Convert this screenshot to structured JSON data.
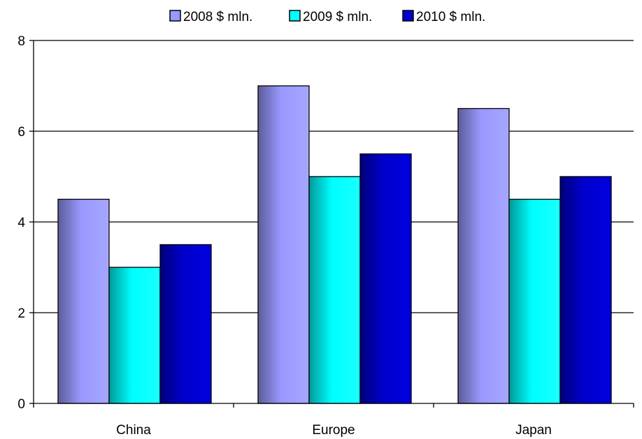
{
  "chart_data": {
    "type": "bar",
    "title": "",
    "xlabel": "",
    "ylabel": "",
    "categories": [
      "China",
      "Europe",
      "Japan"
    ],
    "series": [
      {
        "name": "2008 $ mln.",
        "values": [
          4.5,
          7.0,
          6.5
        ],
        "color": "#9999ff"
      },
      {
        "name": "2009 $ mln.",
        "values": [
          3.0,
          5.0,
          4.5
        ],
        "color": "#00ffff"
      },
      {
        "name": "2010 $ mln.",
        "values": [
          3.5,
          5.5,
          5.0
        ],
        "color": "#0000cc"
      }
    ],
    "ylim": [
      0,
      8
    ],
    "yticks": [
      "0",
      "2",
      "4",
      "6",
      "8"
    ],
    "ytick_values": [
      0,
      2,
      4,
      6,
      8
    ],
    "grid": true,
    "legend_position": "top-center"
  }
}
